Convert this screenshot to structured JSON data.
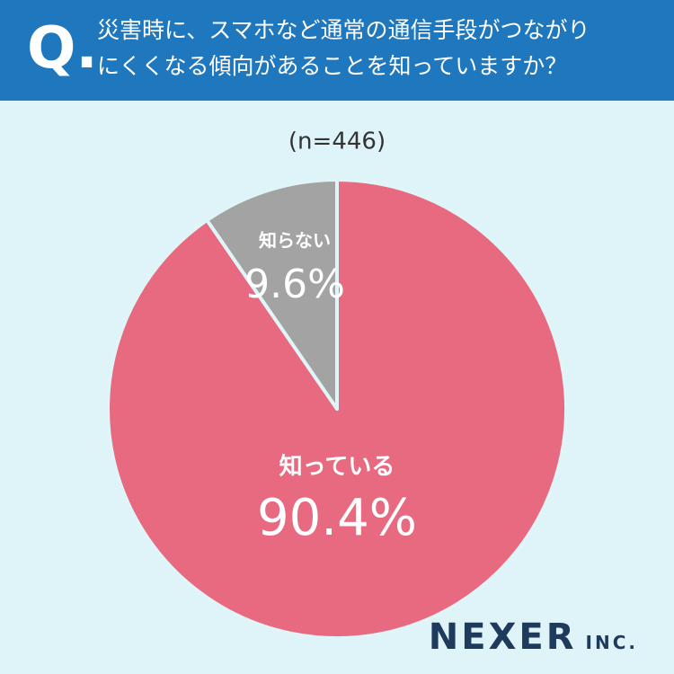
{
  "badge": "Q.",
  "brand": "NEXER",
  "brand_suffix": "INC.",
  "chart_data": {
    "type": "pie",
    "title": "災害時に、スマホなど通常の通信手段がつながりにくくなる傾向があることを知っていますか？",
    "subtitle": "(n=446)",
    "categories": [
      "知っている",
      "知らない"
    ],
    "values": [
      90.4,
      9.6
    ],
    "value_labels": [
      "90.4%",
      "9.6%"
    ],
    "colors": [
      "#e86a80",
      "#a3a3a3"
    ]
  }
}
